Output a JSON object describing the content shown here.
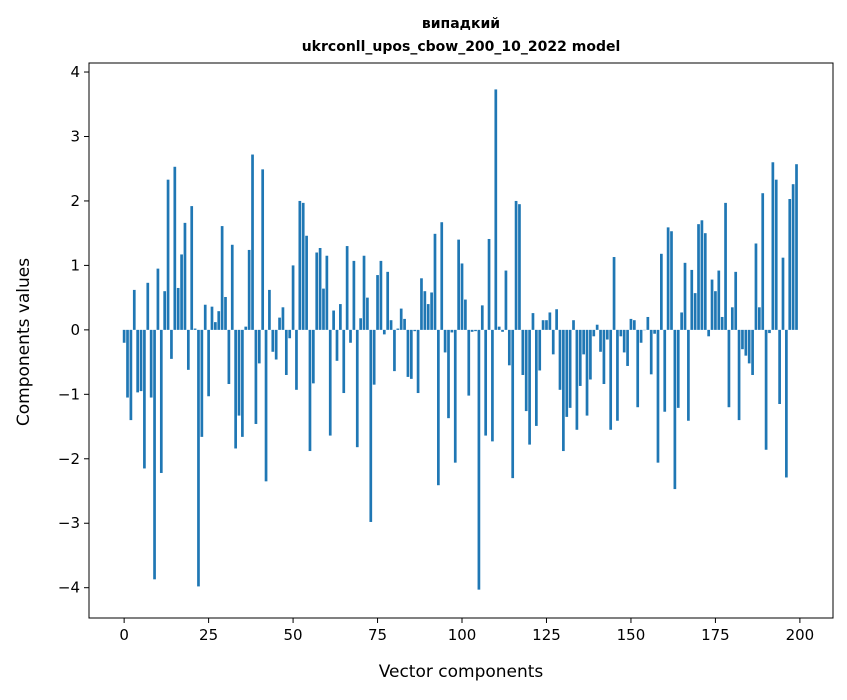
{
  "chart_data": {
    "type": "bar",
    "title": [
      "випадкий",
      "ukrconll_upos_cbow_200_10_2022 model"
    ],
    "xlabel": "Vector components",
    "ylabel": "Components values",
    "xlim": [
      -10.4,
      209.8
    ],
    "ylim": [
      -4.47,
      4.14
    ],
    "xticks": [
      0,
      25,
      50,
      75,
      100,
      125,
      150,
      175,
      200
    ],
    "yticks": [
      -4,
      -3,
      -2,
      -1,
      0,
      1,
      2,
      3,
      4
    ],
    "ytick_labels": [
      "−4",
      "−3",
      "−2",
      "−1",
      "0",
      "1",
      "2",
      "3",
      "4"
    ],
    "bar_color": "#1f77b4",
    "grid": false,
    "values": [
      -0.2,
      -1.05,
      -1.4,
      0.62,
      -0.97,
      -0.95,
      -2.15,
      0.73,
      -1.05,
      -3.87,
      0.95,
      -2.22,
      0.6,
      2.33,
      -0.45,
      2.53,
      0.65,
      1.17,
      1.66,
      -0.62,
      1.92,
      0.02,
      -3.98,
      -1.66,
      0.39,
      -1.03,
      0.36,
      0.12,
      0.29,
      1.61,
      0.51,
      -0.84,
      1.32,
      -1.84,
      -1.33,
      -1.66,
      0.05,
      1.24,
      2.72,
      -1.46,
      -0.52,
      2.49,
      -2.35,
      0.62,
      -0.34,
      -0.46,
      0.19,
      0.35,
      -0.7,
      -0.13,
      1.0,
      -0.93,
      2.0,
      1.97,
      1.46,
      -1.88,
      -0.83,
      1.2,
      1.27,
      0.64,
      1.15,
      -1.64,
      0.3,
      -0.48,
      0.4,
      -0.98,
      1.3,
      -0.2,
      1.07,
      -1.82,
      0.18,
      1.15,
      0.5,
      -2.98,
      -0.85,
      0.85,
      1.07,
      -0.07,
      0.9,
      0.15,
      -0.64,
      0.02,
      0.33,
      0.17,
      -0.73,
      -0.76,
      -0.02,
      -0.98,
      0.8,
      0.6,
      0.4,
      0.58,
      1.49,
      -2.41,
      1.67,
      -0.35,
      -1.37,
      -0.04,
      -2.06,
      1.4,
      1.03,
      0.47,
      -1.02,
      -0.03,
      -0.02,
      -4.03,
      0.38,
      -1.64,
      1.41,
      -1.73,
      3.73,
      0.05,
      -0.03,
      0.92,
      -0.55,
      -2.3,
      2.0,
      1.95,
      -0.7,
      -1.26,
      -1.78,
      0.26,
      -1.49,
      -0.63,
      0.15,
      0.15,
      0.27,
      -0.38,
      0.32,
      -0.93,
      -1.88,
      -1.35,
      -1.21,
      0.15,
      -1.55,
      -0.87,
      -0.38,
      -1.33,
      -0.77,
      -0.1,
      0.08,
      -0.34,
      -0.84,
      -0.15,
      -1.55,
      1.13,
      -1.41,
      -0.1,
      -0.35,
      -0.56,
      0.17,
      0.15,
      -1.2,
      -0.2,
      0.0,
      0.2,
      -0.69,
      -0.06,
      -2.06,
      1.18,
      -1.27,
      1.59,
      1.53,
      -2.47,
      -1.21,
      0.27,
      1.04,
      -1.41,
      0.93,
      0.57,
      1.64,
      1.7,
      1.5,
      -0.1,
      0.78,
      0.6,
      0.92,
      0.2,
      1.97,
      -1.2,
      0.35,
      0.9,
      -1.4,
      -0.3,
      -0.4,
      -0.52,
      -0.7,
      1.34,
      0.35,
      2.12,
      -1.86,
      -0.05,
      2.6,
      2.33,
      -1.15,
      1.12,
      -2.29,
      2.03,
      2.26,
      2.57
    ]
  }
}
